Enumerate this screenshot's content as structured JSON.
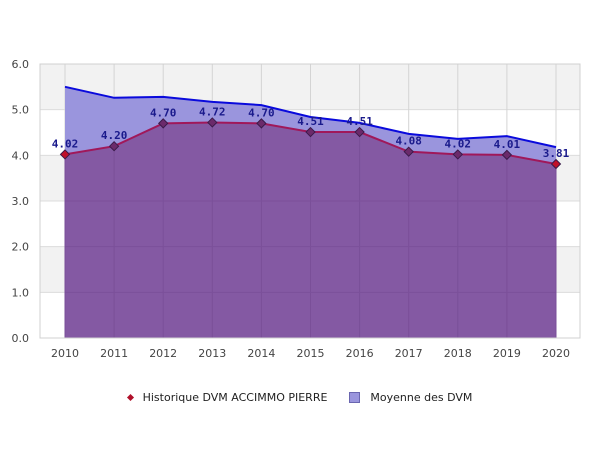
{
  "chart_data": {
    "type": "area",
    "title": "",
    "xlabel": "",
    "ylabel": "",
    "categories": [
      "2010",
      "2011",
      "2012",
      "2013",
      "2014",
      "2015",
      "2016",
      "2017",
      "2018",
      "2019",
      "2020"
    ],
    "ylim": [
      0,
      6
    ],
    "yticks": [
      "0.0",
      "1.0",
      "2.0",
      "3.0",
      "4.0",
      "5.0",
      "6.0"
    ],
    "grid": true,
    "legend_position": "bottom",
    "series": [
      {
        "name": "Historique DVM ACCIMMO PIERRE",
        "type": "area-line",
        "values": [
          4.02,
          4.2,
          4.7,
          4.72,
          4.7,
          4.51,
          4.51,
          4.08,
          4.02,
          4.01,
          3.81
        ],
        "labels": [
          "4.02",
          "4.20",
          "4.70",
          "4.72",
          "4.70",
          "4.51",
          "4.51",
          "4.08",
          "4.02",
          "4.01",
          "3.81"
        ],
        "fill_color": "#8459a3",
        "line_color": "#a0185a",
        "marker_color": "#6b2a6b"
      },
      {
        "name": "Moyenne des DVM",
        "type": "area",
        "values": [
          5.5,
          5.26,
          5.28,
          5.17,
          5.1,
          4.84,
          4.71,
          4.47,
          4.36,
          4.42,
          4.18
        ],
        "fill_color": "#9a95dd",
        "line_color": "#0a0adc"
      }
    ]
  },
  "legend": {
    "items": [
      {
        "label": "Historique DVM ACCIMMO PIERRE",
        "icon": "diamond-marker"
      },
      {
        "label": "Moyenne des DVM",
        "icon": "square-swatch"
      }
    ]
  }
}
